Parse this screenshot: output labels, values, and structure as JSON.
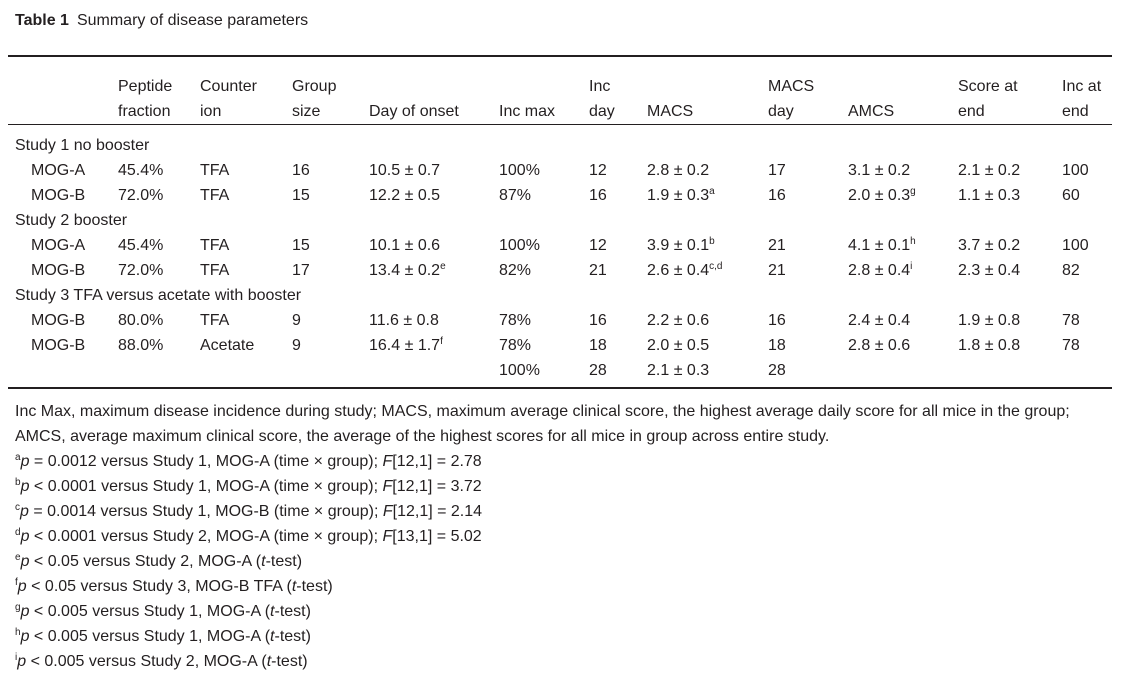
{
  "caption": {
    "label": "Table 1",
    "title": "Summary of disease parameters"
  },
  "headers": [
    [
      "",
      ""
    ],
    [
      "Peptide",
      "fraction"
    ],
    [
      "Counter",
      "ion"
    ],
    [
      "Group",
      "size"
    ],
    [
      "",
      "Day of onset"
    ],
    [
      "",
      "Inc max"
    ],
    [
      "Inc",
      "day"
    ],
    [
      "",
      "MACS"
    ],
    [
      "MACS",
      "day"
    ],
    [
      "",
      "AMCS"
    ],
    [
      "Score at",
      "end"
    ],
    [
      "Inc at",
      "end"
    ]
  ],
  "sections": [
    {
      "title": "Study 1 no booster",
      "rows": [
        [
          "MOG-A",
          "45.4%",
          "TFA",
          "16",
          "10.5 ± 0.7",
          "100%",
          "12",
          "2.8 ± 0.2",
          "17",
          "3.1 ± 0.2",
          "2.1 ± 0.2",
          "100"
        ],
        [
          "MOG-B",
          "72.0%",
          "TFA",
          "15",
          "12.2 ± 0.5",
          "87%",
          "16",
          "1.9 ± 0.3",
          "16",
          "2.0 ± 0.3",
          "1.1 ± 0.3",
          "60"
        ]
      ],
      "sups": [
        [
          "",
          "",
          "",
          "",
          "",
          "",
          "",
          "",
          "",
          "",
          "",
          ""
        ],
        [
          "",
          "",
          "",
          "",
          "",
          "",
          "",
          "a",
          "",
          "g",
          "",
          ""
        ]
      ]
    },
    {
      "title": "Study 2 booster",
      "rows": [
        [
          "MOG-A",
          "45.4%",
          "TFA",
          "15",
          "10.1 ± 0.6",
          "100%",
          "12",
          "3.9 ± 0.1",
          "21",
          "4.1 ± 0.1",
          "3.7 ± 0.2",
          "100"
        ],
        [
          "MOG-B",
          "72.0%",
          "TFA",
          "17",
          "13.4 ± 0.2",
          "82%",
          "21",
          "2.6 ± 0.4",
          "21",
          "2.8 ± 0.4",
          "2.3 ± 0.4",
          "82"
        ]
      ],
      "sups": [
        [
          "",
          "",
          "",
          "",
          "",
          "",
          "",
          "b",
          "",
          "h",
          "",
          ""
        ],
        [
          "",
          "",
          "",
          "",
          "e",
          "",
          "",
          "c,d",
          "",
          "i",
          "",
          ""
        ]
      ]
    },
    {
      "title": "Study 3 TFA versus acetate with booster",
      "rows": [
        [
          "MOG-B",
          "80.0%",
          "TFA",
          "9",
          "11.6 ± 0.8",
          "78%",
          "16",
          "2.2 ± 0.6",
          "16",
          "2.4 ± 0.4",
          "1.9 ± 0.8",
          "78"
        ],
        [
          "MOG-B",
          "88.0%",
          "Acetate",
          "9",
          "16.4 ± 1.7",
          "78%",
          "18",
          "2.0 ± 0.5",
          "18",
          "2.8 ± 0.6",
          "1.8 ± 0.8",
          "78"
        ],
        [
          "",
          "",
          "",
          "",
          "",
          "100%",
          "28",
          "2.1 ± 0.3",
          "28",
          "",
          "",
          ""
        ]
      ],
      "sups": [
        [
          "",
          "",
          "",
          "",
          "",
          "",
          "",
          "",
          "",
          "",
          "",
          ""
        ],
        [
          "",
          "",
          "",
          "",
          "f",
          "",
          "",
          "",
          "",
          "",
          "",
          ""
        ],
        [
          "",
          "",
          "",
          "",
          "",
          "",
          "",
          "",
          "",
          "",
          "",
          ""
        ]
      ]
    }
  ],
  "definition": "Inc Max, maximum disease incidence during study; MACS, maximum average clinical score, the highest average daily score for all mice in the group; AMCS, average maximum clinical score, the average of the highest scores for all mice in group across entire study.",
  "footnotes": [
    {
      "mark": "a",
      "rel": " = ",
      "val": "0.0012",
      "text": " versus Study 1, MOG-A (time × group); ",
      "F": "[12,1] = 2.78"
    },
    {
      "mark": "b",
      "rel": " < ",
      "val": "0.0001",
      "text": " versus Study 1, MOG-A (time × group); ",
      "F": "[12,1] = 3.72"
    },
    {
      "mark": "c",
      "rel": " = ",
      "val": "0.0014",
      "text": " versus Study 1, MOG-B (time × group); ",
      "F": "[12,1] = 2.14"
    },
    {
      "mark": "d",
      "rel": " < ",
      "val": "0.0001",
      "text": " versus Study 2, MOG-A (time × group); ",
      "F": "[13,1] = 5.02"
    },
    {
      "mark": "e",
      "rel": " < ",
      "val": "0.05",
      "text": " versus Study 2, MOG-A (",
      "t": "-test)"
    },
    {
      "mark": "f",
      "rel": " < ",
      "val": "0.05",
      "text": " versus Study 3, MOG-B TFA (",
      "t": "-test)"
    },
    {
      "mark": "g",
      "rel": " < ",
      "val": "0.005",
      "text": " versus Study 1, MOG-A (",
      "t": "-test)"
    },
    {
      "mark": "h",
      "rel": " < ",
      "val": "0.005",
      "text": " versus Study 1, MOG-A (",
      "t": "-test)"
    },
    {
      "mark": "i",
      "rel": " < ",
      "val": "0.005",
      "text": " versus Study 2, MOG-A (",
      "t": "-test)"
    }
  ]
}
